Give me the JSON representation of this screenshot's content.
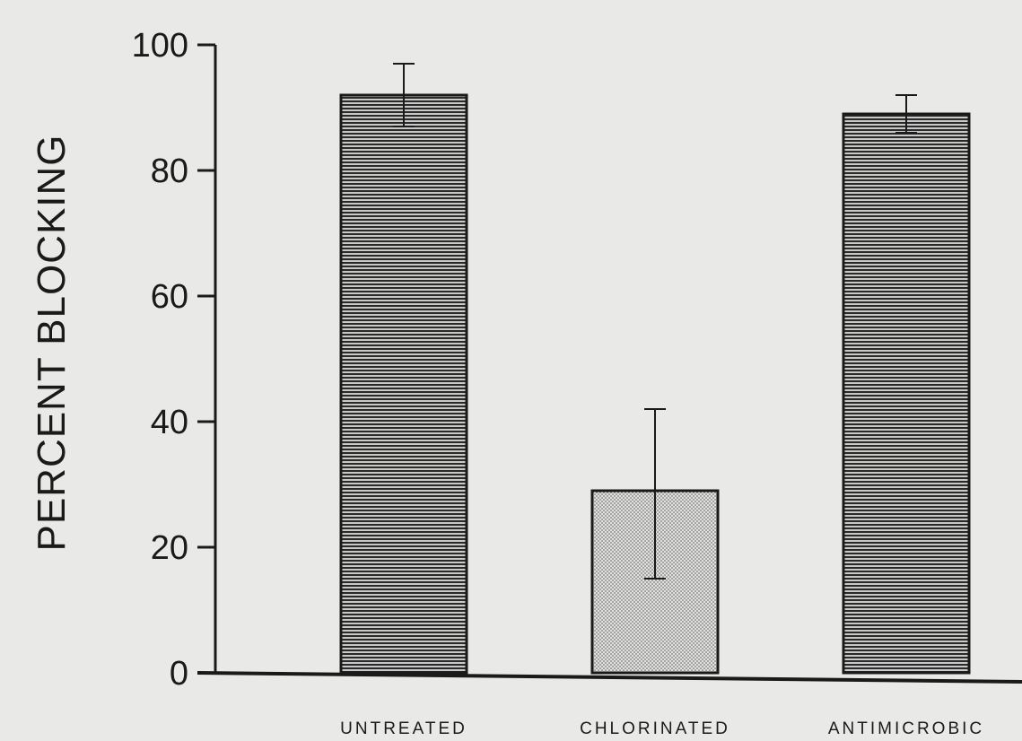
{
  "chart_data": {
    "type": "bar",
    "title": "",
    "xlabel": "",
    "ylabel": "PERCENT BLOCKING",
    "ylim": [
      0,
      100
    ],
    "yticks": [
      0,
      20,
      40,
      60,
      80,
      100
    ],
    "grid": false,
    "categories": [
      "UNTREATED",
      "CHLORINATED",
      "ANTIMICROBIC"
    ],
    "values": [
      92,
      29,
      89
    ],
    "error_low": [
      87,
      15,
      86
    ],
    "error_high": [
      97,
      42,
      92
    ],
    "fill_patterns": [
      "horizontal-lines",
      "dotted",
      "horizontal-lines"
    ],
    "colors": {
      "ink": "#1a1a1a",
      "background": "#e9e9e7",
      "bar_fill": "#c9c9c7"
    }
  }
}
